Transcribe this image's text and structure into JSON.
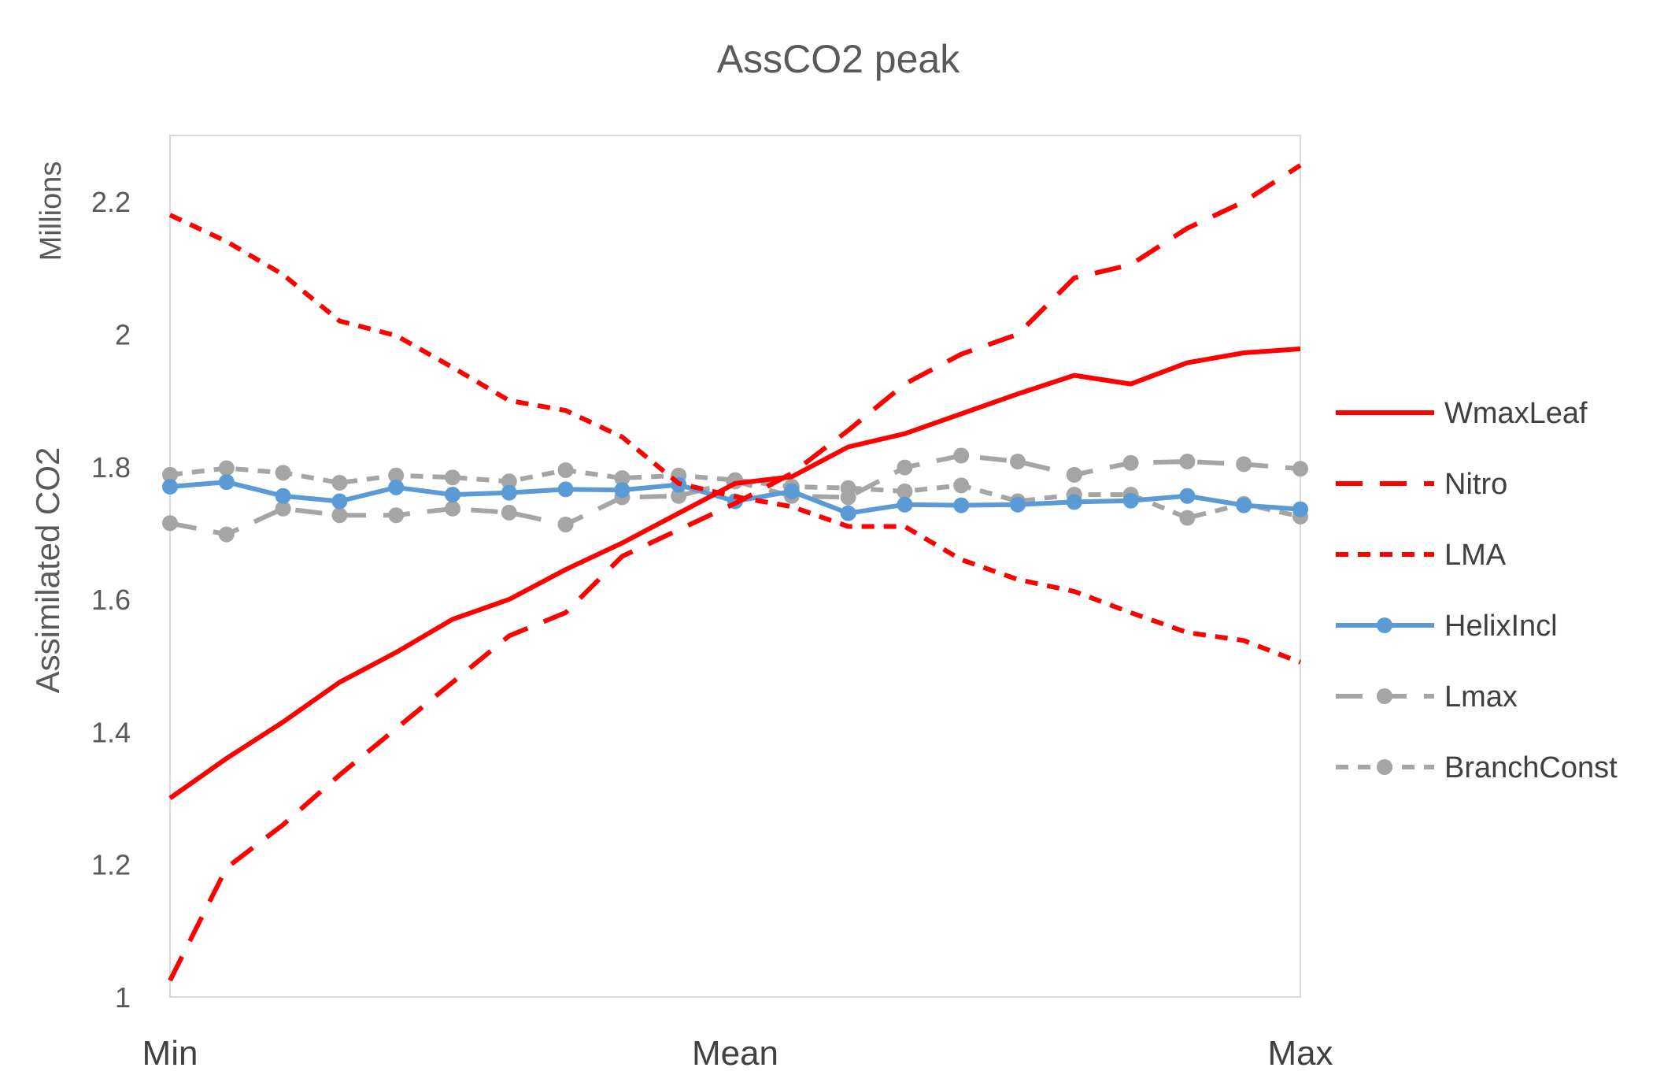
{
  "chart_data": {
    "type": "line",
    "title": "AssCO2 peak",
    "ylabel": "Assimilated CO2",
    "y_units_label": "Millions",
    "ylim": [
      1,
      2.3
    ],
    "yticks": [
      1,
      1.2,
      1.4,
      1.6,
      1.8,
      2,
      2.2
    ],
    "ytick_labels": [
      "1",
      "1.2",
      "1.4",
      "1.6",
      "1.8",
      "2",
      "2.2"
    ],
    "x_count": 21,
    "x_tick_labels": [
      {
        "index": 0,
        "label": "Min"
      },
      {
        "index": 10,
        "label": "Mean"
      },
      {
        "index": 20,
        "label": "Max"
      }
    ],
    "grid": false,
    "legend_position": "right",
    "series": [
      {
        "name": "WmaxLeaf",
        "color": "#FF0000",
        "style": "solid",
        "marker": false,
        "values": [
          1.3,
          1.36,
          1.415,
          1.475,
          1.52,
          1.57,
          1.6,
          1.645,
          1.685,
          1.73,
          1.775,
          1.785,
          1.83,
          1.85,
          1.88,
          1.91,
          1.938,
          1.925,
          1.957,
          1.972,
          1.978
        ]
      },
      {
        "name": "Nitro",
        "color": "#FF0000",
        "style": "longdash",
        "marker": false,
        "values": [
          1.025,
          1.195,
          1.26,
          1.335,
          1.405,
          1.475,
          1.545,
          1.58,
          1.665,
          1.705,
          1.745,
          1.79,
          1.855,
          1.925,
          1.97,
          2.0,
          2.085,
          2.105,
          2.16,
          2.2,
          2.255
        ]
      },
      {
        "name": "LMA",
        "color": "#FF0000",
        "style": "shortdash",
        "marker": false,
        "values": [
          2.18,
          2.14,
          2.09,
          2.02,
          1.998,
          1.95,
          1.9,
          1.885,
          1.845,
          1.775,
          1.755,
          1.74,
          1.71,
          1.71,
          1.66,
          1.63,
          1.612,
          1.58,
          1.55,
          1.538,
          1.505
        ]
      },
      {
        "name": "HelixIncl",
        "color": "#5B9BD5",
        "style": "solid",
        "marker": true,
        "values": [
          1.77,
          1.777,
          1.756,
          1.748,
          1.769,
          1.758,
          1.761,
          1.766,
          1.765,
          1.773,
          1.748,
          1.763,
          1.73,
          1.743,
          1.742,
          1.743,
          1.747,
          1.749,
          1.756,
          1.742,
          1.736
        ]
      },
      {
        "name": "Lmax",
        "color": "#A5A5A5",
        "style": "longdash",
        "marker": true,
        "values": [
          1.715,
          1.698,
          1.737,
          1.727,
          1.727,
          1.737,
          1.731,
          1.713,
          1.754,
          1.756,
          1.778,
          1.756,
          1.754,
          1.799,
          1.817,
          1.808,
          1.788,
          1.806,
          1.808,
          1.804,
          1.797
        ]
      },
      {
        "name": "BranchConst",
        "color": "#A5A5A5",
        "style": "shortdash",
        "marker": true,
        "values": [
          1.788,
          1.798,
          1.791,
          1.776,
          1.787,
          1.784,
          1.778,
          1.795,
          1.783,
          1.787,
          1.78,
          1.77,
          1.768,
          1.763,
          1.772,
          1.748,
          1.758,
          1.758,
          1.723,
          1.744,
          1.725
        ]
      }
    ]
  }
}
